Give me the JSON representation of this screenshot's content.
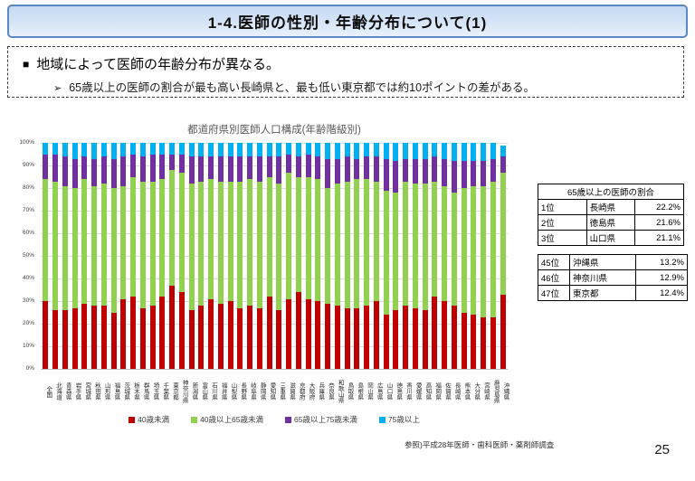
{
  "page": {
    "number": "25"
  },
  "title_bar": {
    "text": "1-4.医師の性別・年齢分布について(1)"
  },
  "summary_box": {
    "square_bullet": "■",
    "heading": "地域によって医師の年齢分布が異なる。",
    "arrow_bullet": "➢",
    "bullet": "65歳以上の医師の割合が最も高い長崎県と、最も低い東京都では約10ポイントの差がある。"
  },
  "chart_data": {
    "type": "bar",
    "stacked": true,
    "percent_stacked": true,
    "title": "都道府県別医師人口構成(年齢階級別)",
    "grid": true,
    "legend_position": "bottom",
    "ylim": [
      0,
      100
    ],
    "y_ticks": [
      "0%",
      "10%",
      "20%",
      "30%",
      "40%",
      "50%",
      "60%",
      "70%",
      "80%",
      "90%",
      "100%"
    ],
    "categories": [
      "全国",
      "北海道",
      "青森県",
      "岩手県",
      "宮城県",
      "秋田県",
      "山形県",
      "福島県",
      "茨城県",
      "栃木県",
      "群馬県",
      "埼玉県",
      "千葉県",
      "東京都",
      "神奈川県",
      "新潟県",
      "富山県",
      "石川県",
      "福井県",
      "山梨県",
      "長野県",
      "岐阜県",
      "静岡県",
      "愛知県",
      "三重県",
      "滋賀県",
      "京都府",
      "大阪府",
      "兵庫県",
      "奈良県",
      "和歌山県",
      "鳥取県",
      "島根県",
      "岡山県",
      "広島県",
      "山口県",
      "徳島県",
      "香川県",
      "愛媛県",
      "高知県",
      "福岡県",
      "佐賀県",
      "長崎県",
      "熊本県",
      "大分県",
      "宮崎県",
      "鹿児島県",
      "沖縄県"
    ],
    "series": [
      {
        "name": "40歳未満",
        "color": "#C00000",
        "values": [
          30,
          26,
          26,
          27,
          29,
          28,
          28,
          25,
          31,
          32,
          27,
          28,
          32,
          37,
          34,
          26,
          28,
          31,
          29,
          30,
          27,
          28,
          27,
          32,
          26,
          31,
          34,
          31,
          30,
          29,
          28,
          27,
          27,
          28,
          30,
          24,
          26,
          28,
          27,
          26,
          32,
          30,
          28,
          25,
          24,
          23,
          23,
          33
        ]
      },
      {
        "name": "40歳以上65歳未満",
        "color": "#92D050",
        "values": [
          54,
          57,
          55,
          53,
          55,
          53,
          54,
          55,
          50,
          53,
          56,
          55,
          52,
          51,
          53,
          56,
          55,
          53,
          54,
          53,
          56,
          56,
          56,
          53,
          56,
          56,
          51,
          54,
          54,
          51,
          54,
          56,
          57,
          56,
          53,
          55,
          52,
          55,
          55,
          56,
          51,
          51,
          50,
          55,
          57,
          58,
          60,
          54
        ]
      },
      {
        "name": "65歳以上75歳未満",
        "color": "#7030A0",
        "values": [
          11,
          12,
          13,
          13,
          10,
          12,
          12,
          13,
          13,
          10,
          11,
          12,
          11,
          7,
          8,
          12,
          11,
          10,
          11,
          11,
          11,
          10,
          11,
          9,
          12,
          8,
          9,
          10,
          10,
          13,
          11,
          11,
          9,
          10,
          11,
          14,
          14,
          10,
          11,
          11,
          11,
          12,
          14,
          12,
          11,
          11,
          10,
          7
        ]
      },
      {
        "name": "75歳以上",
        "color": "#00B0F0",
        "values": [
          5,
          5,
          6,
          7,
          6,
          7,
          6,
          7,
          6,
          5,
          6,
          5,
          5,
          5,
          5,
          6,
          6,
          6,
          6,
          6,
          6,
          6,
          6,
          6,
          6,
          5,
          6,
          5,
          6,
          7,
          7,
          6,
          7,
          6,
          6,
          7,
          8,
          7,
          7,
          7,
          6,
          7,
          8,
          8,
          8,
          8,
          7,
          5
        ]
      }
    ]
  },
  "ranking_table": {
    "title": "65歳以上の医師の割合",
    "top_rows": [
      [
        "1位",
        "長崎県",
        "22.2%"
      ],
      [
        "2位",
        "徳島県",
        "21.6%"
      ],
      [
        "3位",
        "山口県",
        "21.1%"
      ]
    ],
    "bottom_rows": [
      [
        "45位",
        "沖縄県",
        "13.2%"
      ],
      [
        "46位",
        "神奈川県",
        "12.9%"
      ],
      [
        "47位",
        "東京都",
        "12.4%"
      ]
    ]
  },
  "source": "参照)平成28年医師・歯科医師・薬剤師調査"
}
